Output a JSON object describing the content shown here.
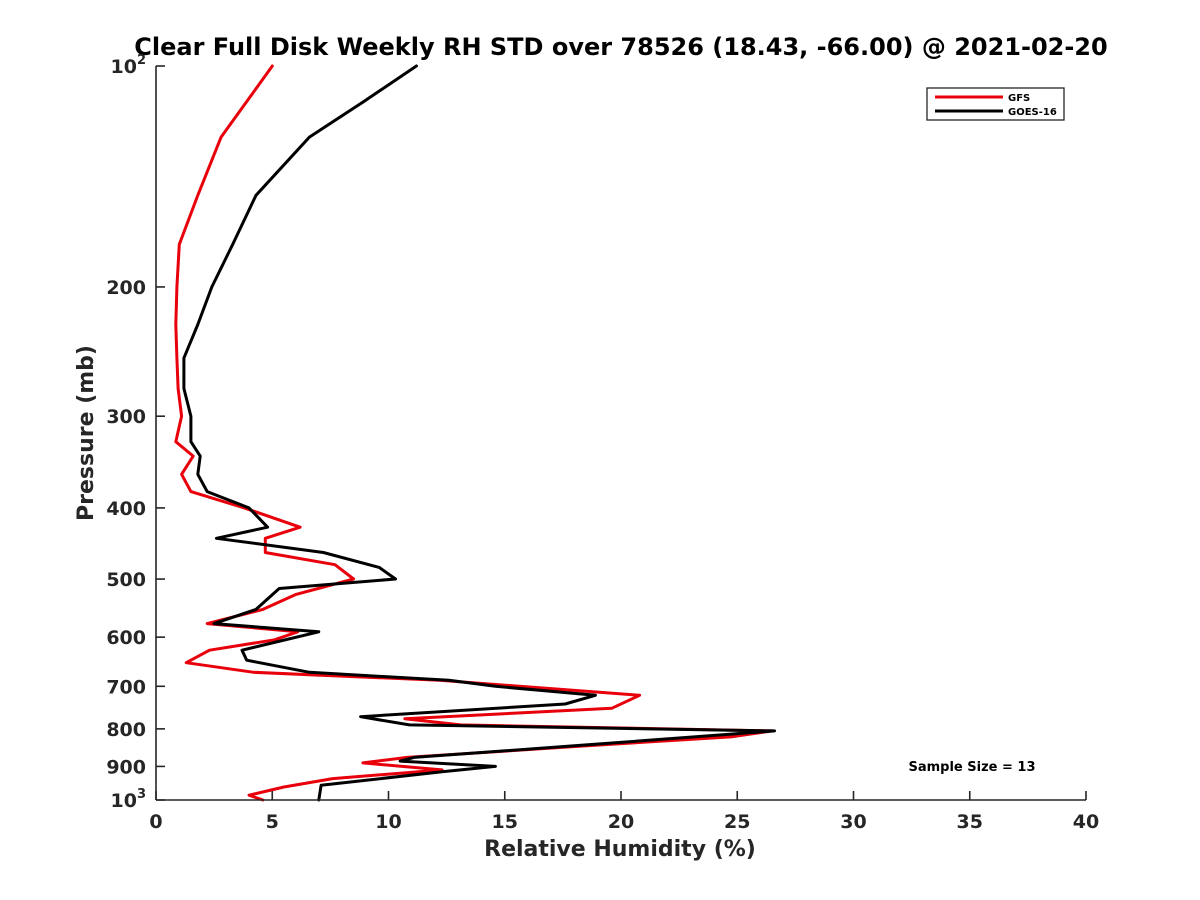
{
  "chart_data": {
    "type": "line",
    "title": "Clear Full Disk Weekly RH STD over 78526 (18.43, -66.00) @ 2021-02-20",
    "xlabel": "Relative Humidity (%)",
    "ylabel": "Pressure (mb)",
    "xlim": [
      0,
      40
    ],
    "ylim": [
      100,
      1000
    ],
    "yscale": "log",
    "y_reversed": true,
    "grid": false,
    "x_ticks": [
      "0",
      "5",
      "10",
      "15",
      "20",
      "25",
      "30",
      "35",
      "40"
    ],
    "y_ticks": [
      {
        "value": 100,
        "label": "10",
        "exp": "2"
      },
      {
        "value": 200,
        "label": "200",
        "exp": ""
      },
      {
        "value": 300,
        "label": "300",
        "exp": ""
      },
      {
        "value": 400,
        "label": "400",
        "exp": ""
      },
      {
        "value": 500,
        "label": "500",
        "exp": ""
      },
      {
        "value": 600,
        "label": "600",
        "exp": ""
      },
      {
        "value": 700,
        "label": "700",
        "exp": ""
      },
      {
        "value": 800,
        "label": "800",
        "exp": ""
      },
      {
        "value": 900,
        "label": "900",
        "exp": ""
      },
      {
        "value": 1000,
        "label": "10",
        "exp": "3"
      }
    ],
    "legend_position": "top-right",
    "series": [
      {
        "name": "GFS",
        "color": "#e8000b",
        "points": [
          [
            5.0,
            100
          ],
          [
            2.8,
            125
          ],
          [
            1.8,
            150
          ],
          [
            1.0,
            175
          ],
          [
            0.9,
            200
          ],
          [
            0.85,
            225
          ],
          [
            0.9,
            250
          ],
          [
            0.95,
            275
          ],
          [
            1.1,
            300
          ],
          [
            0.85,
            325
          ],
          [
            1.6,
            340
          ],
          [
            1.1,
            360
          ],
          [
            1.5,
            380
          ],
          [
            3.8,
            400
          ],
          [
            6.2,
            425
          ],
          [
            4.7,
            440
          ],
          [
            4.7,
            460
          ],
          [
            7.7,
            478
          ],
          [
            8.5,
            500
          ],
          [
            6.0,
            525
          ],
          [
            4.6,
            550
          ],
          [
            2.2,
            575
          ],
          [
            6.1,
            590
          ],
          [
            5.1,
            605
          ],
          [
            2.3,
            625
          ],
          [
            1.3,
            650
          ],
          [
            4.2,
            670
          ],
          [
            12.2,
            687
          ],
          [
            20.8,
            720
          ],
          [
            19.6,
            750
          ],
          [
            10.7,
            775
          ],
          [
            13.1,
            790
          ],
          [
            26.5,
            805
          ],
          [
            24.8,
            820
          ],
          [
            18.2,
            845
          ],
          [
            10.8,
            875
          ],
          [
            8.9,
            890
          ],
          [
            12.3,
            910
          ],
          [
            7.6,
            935
          ],
          [
            5.5,
            960
          ],
          [
            4.0,
            985
          ],
          [
            4.6,
            1000
          ]
        ]
      },
      {
        "name": "GOES-16",
        "color": "#000000",
        "points": [
          [
            11.2,
            100
          ],
          [
            8.9,
            112
          ],
          [
            6.6,
            125
          ],
          [
            4.3,
            150
          ],
          [
            3.3,
            175
          ],
          [
            2.4,
            200
          ],
          [
            1.8,
            225
          ],
          [
            1.2,
            250
          ],
          [
            1.2,
            275
          ],
          [
            1.5,
            300
          ],
          [
            1.5,
            325
          ],
          [
            1.9,
            340
          ],
          [
            1.8,
            360
          ],
          [
            2.2,
            380
          ],
          [
            4.0,
            400
          ],
          [
            4.8,
            425
          ],
          [
            2.6,
            440
          ],
          [
            7.2,
            460
          ],
          [
            9.6,
            482
          ],
          [
            10.3,
            500
          ],
          [
            5.3,
            515
          ],
          [
            4.3,
            550
          ],
          [
            2.5,
            575
          ],
          [
            7.0,
            590
          ],
          [
            3.7,
            625
          ],
          [
            3.9,
            645
          ],
          [
            6.6,
            670
          ],
          [
            12.6,
            687
          ],
          [
            14.6,
            700
          ],
          [
            18.9,
            720
          ],
          [
            17.6,
            740
          ],
          [
            8.8,
            770
          ],
          [
            10.9,
            790
          ],
          [
            26.6,
            805
          ],
          [
            18.8,
            840
          ],
          [
            11.1,
            875
          ],
          [
            10.5,
            885
          ],
          [
            14.6,
            900
          ],
          [
            12.3,
            915
          ],
          [
            7.1,
            955
          ],
          [
            7.0,
            1000
          ]
        ]
      }
    ],
    "annotations": [
      {
        "text": "Sample Size = 13",
        "x": 35,
        "y": 900
      }
    ]
  }
}
